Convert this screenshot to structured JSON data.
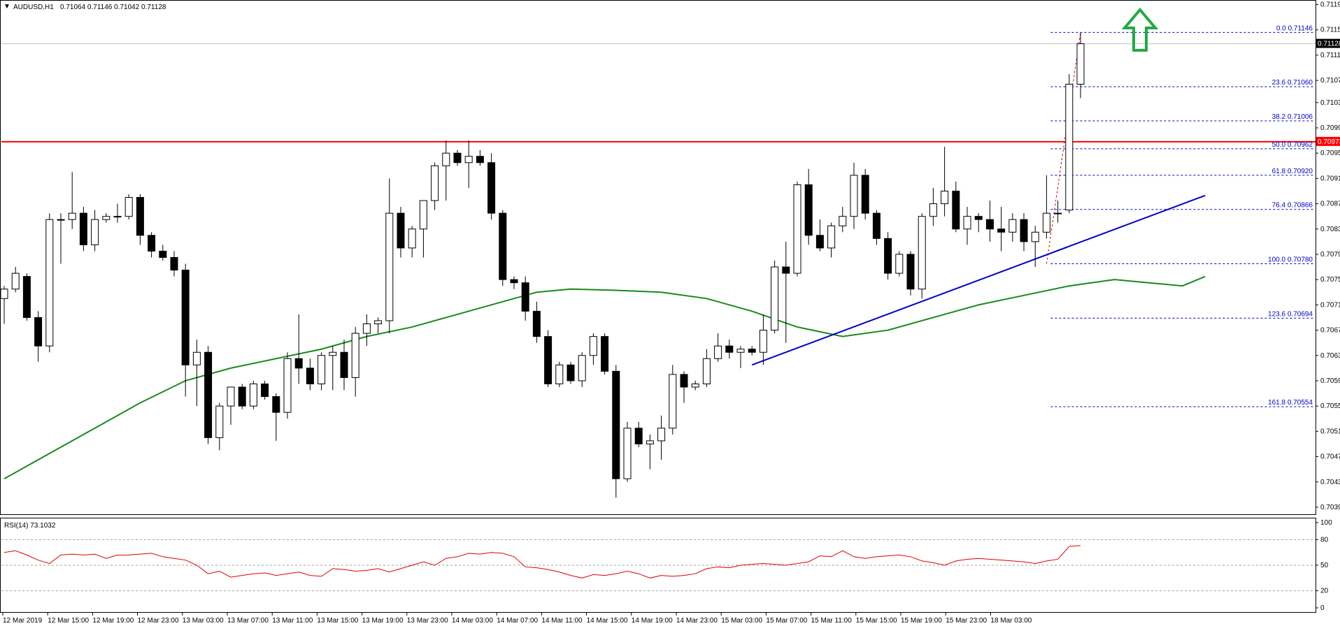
{
  "header": {
    "menu_glyph": "▼",
    "symbol": "AUDUSD,H1",
    "ohlc": "0.71064 0.71146 0.71042 0.71128"
  },
  "rsi_header": "RSI(14) 73.1032",
  "colors": {
    "bull_body": "#ffffff",
    "bear_body": "#000000",
    "ma": "#1a8a1a",
    "trendline": "#0000cc",
    "resistance": "#ff0000",
    "fib": "#0000cc",
    "rsi": "#e00000",
    "arrow": "#22aa44",
    "price_tag_bg": "#000000",
    "resistance_tag_bg": "#ff0000"
  },
  "arrow_icon": "up-arrow-icon",
  "chart_data": {
    "type": "candlestick",
    "title": "",
    "price_axis": {
      "ticks": [
        "0.71190",
        "0.71150",
        "0.71110",
        "0.71070",
        "0.71035",
        "0.70995",
        "0.70955",
        "0.70915",
        "0.70875",
        "0.70835",
        "0.70795",
        "0.70755",
        "0.70715",
        "0.70675",
        "0.70635",
        "0.70595",
        "0.70555",
        "0.70515",
        "0.70475",
        "0.70435",
        "0.70395"
      ],
      "range": [
        0.70385,
        0.71195
      ]
    },
    "time_axis": {
      "ticks": [
        "12 Mar 2019",
        "12 Mar 15:00",
        "12 Mar 19:00",
        "12 Mar 23:00",
        "13 Mar 03:00",
        "13 Mar 07:00",
        "13 Mar 11:00",
        "13 Mar 15:00",
        "13 Mar 19:00",
        "13 Mar 23:00",
        "14 Mar 03:00",
        "14 Mar 07:00",
        "14 Mar 11:00",
        "14 Mar 15:00",
        "14 Mar 19:00",
        "14 Mar 23:00",
        "15 Mar 03:00",
        "15 Mar 07:00",
        "15 Mar 11:00",
        "15 Mar 15:00",
        "15 Mar 19:00",
        "15 Mar 23:00",
        "18 Mar 03:00"
      ]
    },
    "candles": [
      [
        0.70725,
        0.70745,
        0.70685,
        0.7074
      ],
      [
        0.7074,
        0.70775,
        0.70735,
        0.70765
      ],
      [
        0.7076,
        0.70765,
        0.7069,
        0.70695
      ],
      [
        0.70695,
        0.70705,
        0.70625,
        0.7065
      ],
      [
        0.7065,
        0.7086,
        0.7064,
        0.7085
      ],
      [
        0.7085,
        0.7086,
        0.7078,
        0.7085
      ],
      [
        0.7085,
        0.70925,
        0.70835,
        0.7086
      ],
      [
        0.7086,
        0.7087,
        0.708,
        0.7081
      ],
      [
        0.7081,
        0.70865,
        0.708,
        0.7085
      ],
      [
        0.7085,
        0.7086,
        0.70845,
        0.70855
      ],
      [
        0.70855,
        0.70875,
        0.70845,
        0.70855
      ],
      [
        0.70855,
        0.7089,
        0.7085,
        0.70885
      ],
      [
        0.70885,
        0.7089,
        0.7081,
        0.70825
      ],
      [
        0.70825,
        0.7083,
        0.7079,
        0.708
      ],
      [
        0.708,
        0.7081,
        0.70785,
        0.7079
      ],
      [
        0.7079,
        0.708,
        0.7076,
        0.7077
      ],
      [
        0.7077,
        0.7078,
        0.7057,
        0.7062
      ],
      [
        0.7062,
        0.7066,
        0.70555,
        0.7064
      ],
      [
        0.7064,
        0.7065,
        0.70495,
        0.70505
      ],
      [
        0.70505,
        0.7056,
        0.70485,
        0.70555
      ],
      [
        0.70555,
        0.70585,
        0.70525,
        0.70585
      ],
      [
        0.70585,
        0.7059,
        0.7055,
        0.70555
      ],
      [
        0.70555,
        0.70595,
        0.7055,
        0.7059
      ],
      [
        0.7059,
        0.70595,
        0.70565,
        0.7057
      ],
      [
        0.7057,
        0.70575,
        0.705,
        0.70545
      ],
      [
        0.70545,
        0.7064,
        0.70535,
        0.7063
      ],
      [
        0.7063,
        0.707,
        0.7059,
        0.70615
      ],
      [
        0.70615,
        0.7063,
        0.7058,
        0.7059
      ],
      [
        0.7059,
        0.7064,
        0.7058,
        0.70635
      ],
      [
        0.70635,
        0.7065,
        0.7058,
        0.7064
      ],
      [
        0.7064,
        0.7066,
        0.7058,
        0.706
      ],
      [
        0.706,
        0.7068,
        0.7057,
        0.7067
      ],
      [
        0.7067,
        0.707,
        0.7065,
        0.70685
      ],
      [
        0.70685,
        0.70695,
        0.7067,
        0.7069
      ],
      [
        0.7069,
        0.70915,
        0.7067,
        0.7086
      ],
      [
        0.7086,
        0.7087,
        0.7079,
        0.70805
      ],
      [
        0.70805,
        0.7084,
        0.7079,
        0.70835
      ],
      [
        0.70835,
        0.7088,
        0.7079,
        0.7088
      ],
      [
        0.7088,
        0.7094,
        0.70865,
        0.70935
      ],
      [
        0.70935,
        0.70975,
        0.7088,
        0.70955
      ],
      [
        0.70955,
        0.7096,
        0.70935,
        0.7094
      ],
      [
        0.7094,
        0.70975,
        0.709,
        0.7095
      ],
      [
        0.7095,
        0.7096,
        0.70935,
        0.7094
      ],
      [
        0.7094,
        0.70955,
        0.7085,
        0.7086
      ],
      [
        0.7086,
        0.70865,
        0.70745,
        0.70755
      ],
      [
        0.70755,
        0.7076,
        0.7074,
        0.7075
      ],
      [
        0.7075,
        0.7076,
        0.7069,
        0.70705
      ],
      [
        0.70705,
        0.7072,
        0.70655,
        0.70665
      ],
      [
        0.70665,
        0.70675,
        0.70585,
        0.7059
      ],
      [
        0.7059,
        0.70625,
        0.70585,
        0.7062
      ],
      [
        0.7062,
        0.70625,
        0.7059,
        0.70595
      ],
      [
        0.70595,
        0.7064,
        0.70585,
        0.70635
      ],
      [
        0.70635,
        0.7067,
        0.7062,
        0.70665
      ],
      [
        0.70665,
        0.7067,
        0.70605,
        0.7061
      ],
      [
        0.7061,
        0.7062,
        0.7041,
        0.7044
      ],
      [
        0.7044,
        0.7053,
        0.70435,
        0.7052
      ],
      [
        0.7052,
        0.7053,
        0.7049,
        0.70495
      ],
      [
        0.70495,
        0.7051,
        0.70455,
        0.705
      ],
      [
        0.705,
        0.7054,
        0.7047,
        0.7052
      ],
      [
        0.7052,
        0.7062,
        0.7051,
        0.70605
      ],
      [
        0.70605,
        0.7061,
        0.7056,
        0.70585
      ],
      [
        0.70585,
        0.70595,
        0.7058,
        0.7059
      ],
      [
        0.7059,
        0.70645,
        0.70585,
        0.7063
      ],
      [
        0.7063,
        0.7067,
        0.70625,
        0.7065
      ],
      [
        0.7065,
        0.7066,
        0.7063,
        0.7064
      ],
      [
        0.7064,
        0.7065,
        0.70615,
        0.70645
      ],
      [
        0.70645,
        0.7065,
        0.70635,
        0.7064
      ],
      [
        0.7064,
        0.707,
        0.7062,
        0.70675
      ],
      [
        0.70675,
        0.70785,
        0.7067,
        0.70775
      ],
      [
        0.70775,
        0.70815,
        0.70655,
        0.70765
      ],
      [
        0.70765,
        0.7091,
        0.7076,
        0.70905
      ],
      [
        0.70905,
        0.7093,
        0.7081,
        0.70825
      ],
      [
        0.70825,
        0.7085,
        0.708,
        0.70805
      ],
      [
        0.70805,
        0.70845,
        0.7079,
        0.7084
      ],
      [
        0.7084,
        0.7087,
        0.7083,
        0.70855
      ],
      [
        0.70855,
        0.7094,
        0.70835,
        0.7092
      ],
      [
        0.7092,
        0.7093,
        0.7085,
        0.7086
      ],
      [
        0.7086,
        0.70865,
        0.7081,
        0.7082
      ],
      [
        0.7082,
        0.7083,
        0.70755,
        0.70765
      ],
      [
        0.70765,
        0.708,
        0.7076,
        0.70795
      ],
      [
        0.70795,
        0.708,
        0.7073,
        0.7074
      ],
      [
        0.7074,
        0.7086,
        0.70725,
        0.70855
      ],
      [
        0.70855,
        0.709,
        0.7084,
        0.70875
      ],
      [
        0.70875,
        0.70965,
        0.70855,
        0.70895
      ],
      [
        0.70895,
        0.7091,
        0.7083,
        0.70835
      ],
      [
        0.70835,
        0.7087,
        0.7081,
        0.70855
      ],
      [
        0.70855,
        0.7086,
        0.7083,
        0.7085
      ],
      [
        0.7085,
        0.7088,
        0.70815,
        0.70835
      ],
      [
        0.70835,
        0.7087,
        0.708,
        0.7083
      ],
      [
        0.7083,
        0.7086,
        0.70815,
        0.7085
      ],
      [
        0.7085,
        0.7086,
        0.708,
        0.70815
      ],
      [
        0.70815,
        0.7084,
        0.70775,
        0.7083
      ],
      [
        0.7083,
        0.7092,
        0.7082,
        0.7086
      ],
      [
        0.7086,
        0.7088,
        0.70845,
        0.7086
      ],
      [
        0.70865,
        0.7108,
        0.7086,
        0.71064
      ],
      [
        0.71064,
        0.71146,
        0.71042,
        0.71128
      ]
    ],
    "moving_average": [
      [
        0,
        0.7044
      ],
      [
        4,
        0.7048
      ],
      [
        8,
        0.7052
      ],
      [
        12,
        0.7056
      ],
      [
        16,
        0.70595
      ],
      [
        20,
        0.70615
      ],
      [
        24,
        0.7063
      ],
      [
        28,
        0.70645
      ],
      [
        32,
        0.70665
      ],
      [
        36,
        0.7068
      ],
      [
        40,
        0.707
      ],
      [
        44,
        0.7072
      ],
      [
        47,
        0.70735
      ],
      [
        50,
        0.7074
      ],
      [
        54,
        0.70738
      ],
      [
        58,
        0.70735
      ],
      [
        62,
        0.70725
      ],
      [
        66,
        0.70705
      ],
      [
        70,
        0.7068
      ],
      [
        74,
        0.70665
      ],
      [
        78,
        0.70675
      ],
      [
        82,
        0.70695
      ],
      [
        86,
        0.70715
      ],
      [
        90,
        0.7073
      ],
      [
        94,
        0.70745
      ],
      [
        98,
        0.70755
      ],
      [
        101,
        0.7075
      ],
      [
        104,
        0.70745
      ],
      [
        106,
        0.7076
      ]
    ],
    "trendline": [
      [
        66,
        0.7062
      ],
      [
        106,
        0.70888
      ]
    ],
    "resistance_level": 0.70973,
    "resistance_label": "0.70973",
    "current_price_label": "0.71128",
    "fib_retracement": {
      "x_start": 92,
      "swing": [
        [
          92,
          0.7078
        ],
        [
          95,
          0.71146
        ]
      ],
      "levels": [
        {
          "label": "0.0 0.71146",
          "price": 0.71146
        },
        {
          "label": "23.6 0.71060",
          "price": 0.7106
        },
        {
          "label": "38.2 0.71006",
          "price": 0.71006
        },
        {
          "label": "50.0 0.70962",
          "price": 0.70962
        },
        {
          "label": "61.8 0.70920",
          "price": 0.7092
        },
        {
          "label": "76.4 0.70866",
          "price": 0.70866
        },
        {
          "label": "100.0 0.70780",
          "price": 0.7078
        },
        {
          "label": "123.6 0.70694",
          "price": 0.70694
        },
        {
          "label": "161.8 0.70554",
          "price": 0.70554
        }
      ]
    },
    "arrow_index": 100,
    "rsi": {
      "ticks": [
        "100",
        "80",
        "50",
        "20",
        "0"
      ],
      "range": [
        0,
        100
      ],
      "levels": [
        80,
        50,
        20
      ],
      "values": [
        65,
        67,
        62,
        56,
        52,
        62,
        63,
        62,
        63,
        58,
        62,
        62,
        63,
        64,
        60,
        58,
        56,
        50,
        40,
        43,
        36,
        38,
        40,
        41,
        38,
        40,
        42,
        38,
        37,
        46,
        45,
        43,
        44,
        46,
        42,
        46,
        50,
        54,
        50,
        58,
        60,
        64,
        63,
        65,
        64,
        60,
        48,
        47,
        45,
        42,
        38,
        35,
        39,
        38,
        40,
        43,
        40,
        35,
        38,
        37,
        38,
        40,
        46,
        48,
        47,
        50,
        51,
        52,
        51,
        50,
        52,
        54,
        61,
        60,
        67,
        60,
        58,
        60,
        61,
        62,
        60,
        55,
        53,
        50,
        55,
        57,
        58,
        57,
        56,
        55,
        54,
        52,
        55,
        57,
        72,
        73.1
      ]
    }
  }
}
